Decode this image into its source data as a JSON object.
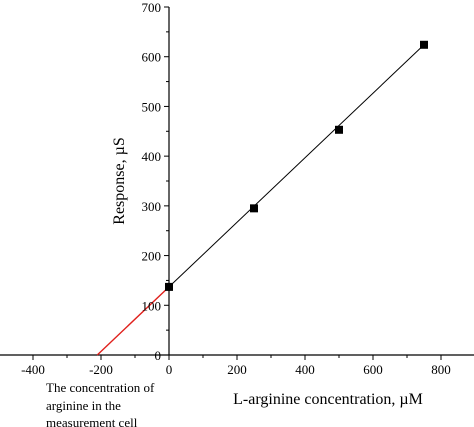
{
  "chart_data": {
    "type": "scatter",
    "title": "",
    "xlabel": "L-arginine concentration, µM",
    "ylabel": "Response, µS",
    "xlim": [
      -500,
      900
    ],
    "ylim": [
      0,
      700
    ],
    "x_ticks": [
      -400,
      -200,
      0,
      200,
      400,
      600,
      800
    ],
    "y_ticks": [
      0,
      100,
      200,
      300,
      400,
      500,
      600,
      700
    ],
    "x_tick_labels": [
      "-400",
      "-200",
      "0",
      "200",
      "400",
      "600",
      "800"
    ],
    "y_tick_labels": [
      "0",
      "100",
      "200",
      "300",
      "400",
      "500",
      "600",
      "700"
    ],
    "series": [
      {
        "marker": "square",
        "color": "#000000",
        "x": [
          0,
          250,
          500,
          750
        ],
        "y": [
          137,
          295,
          453,
          624
        ]
      }
    ],
    "fit_line": {
      "color": "#000000",
      "x": [
        0,
        750
      ],
      "y": [
        137,
        624
      ]
    },
    "extrapolation_line": {
      "color": "#e0201c",
      "x": [
        -211,
        0
      ],
      "y": [
        0,
        137
      ]
    },
    "annotation": {
      "lines": [
        "The concentration of",
        "arginine in the",
        "measurement cell"
      ]
    }
  }
}
